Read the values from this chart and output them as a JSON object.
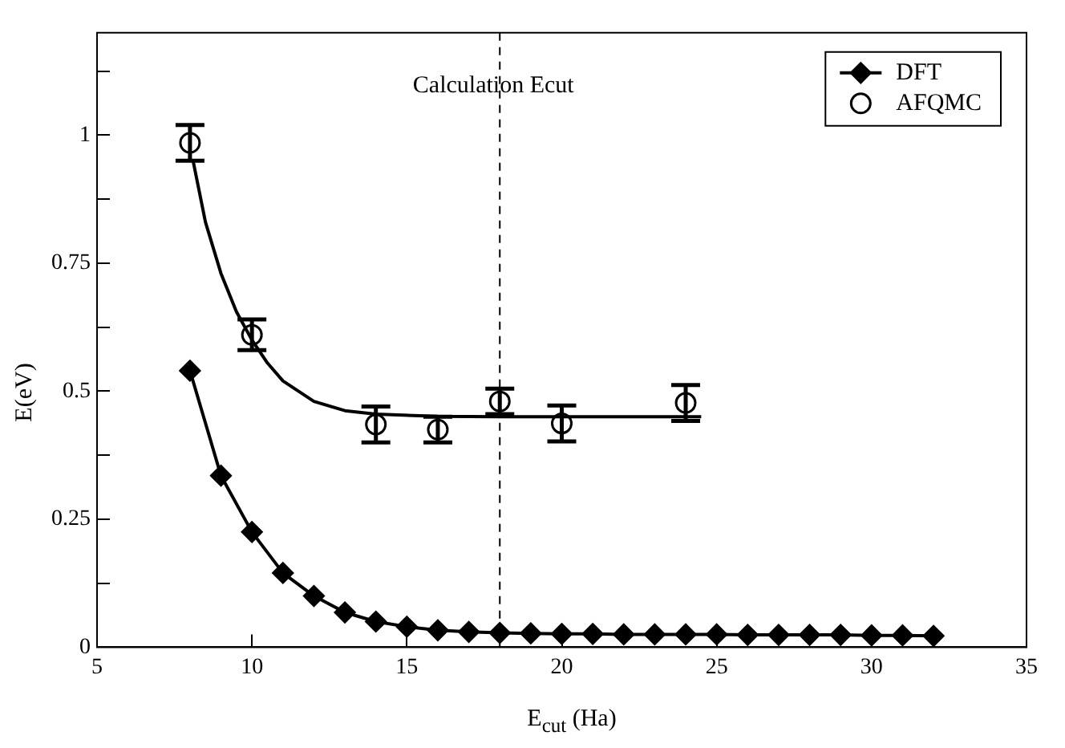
{
  "chart_data": {
    "type": "line",
    "xlabel": "E$_{cut}$ (Ha)",
    "ylabel": "E(eV)",
    "xlim": [
      5,
      35
    ],
    "xticks": [
      5,
      10,
      15,
      20,
      25,
      30,
      35
    ],
    "ylim": [
      0,
      1.2
    ],
    "yticks": [
      0,
      {
        "value": 0.125,
        "label": null
      },
      0.25,
      {
        "value": 0.375,
        "label": null
      },
      0.5,
      {
        "value": 0.625,
        "label": null
      },
      0.75,
      {
        "value": 0.875,
        "label": null
      },
      1,
      {
        "value": 1.125,
        "label": null
      }
    ],
    "grid": false,
    "legend": "top right",
    "ref_lines": [
      {
        "axis": "x",
        "value": 18,
        "label": "Calculation Ecut",
        "color": "#000000",
        "line_style": "dashed"
      }
    ],
    "series": [
      {
        "name": "DFT",
        "color": "#000000",
        "marker": "diamond",
        "line_style": "solid",
        "x": [
          8,
          9,
          10,
          11,
          12,
          13,
          14,
          15,
          16,
          17,
          18,
          19,
          20,
          21,
          22,
          23,
          24,
          25,
          26,
          27,
          28,
          29,
          30,
          31,
          32
        ],
        "values": [
          0.54,
          0.335,
          0.225,
          0.145,
          0.1,
          0.068,
          0.05,
          0.04,
          0.033,
          0.03,
          0.028,
          0.027,
          0.026,
          0.026,
          0.025,
          0.025,
          0.025,
          0.025,
          0.024,
          0.024,
          0.024,
          0.024,
          0.023,
          0.023,
          0.022
        ]
      },
      {
        "name": "AFQMC",
        "type": "scatter",
        "color": "#000000",
        "marker": "circle",
        "x": [
          8,
          10,
          14,
          16,
          18,
          20,
          24
        ],
        "values": [
          0.985,
          0.61,
          0.435,
          0.425,
          0.48,
          0.437,
          0.477
        ],
        "errors": [
          0.035,
          0.03,
          0.035,
          0.025,
          0.025,
          0.035,
          0.035
        ]
      },
      {
        "color": "#000000",
        "marker": "none",
        "line_style": "solid",
        "x": [
          8.1,
          8.5,
          9,
          9.5,
          10,
          10.5,
          11,
          12,
          13,
          14,
          16,
          18,
          20,
          24.5
        ],
        "values": [
          0.95,
          0.83,
          0.73,
          0.655,
          0.6,
          0.555,
          0.52,
          0.48,
          0.462,
          0.455,
          0.451,
          0.45,
          0.45,
          0.45
        ]
      }
    ]
  }
}
